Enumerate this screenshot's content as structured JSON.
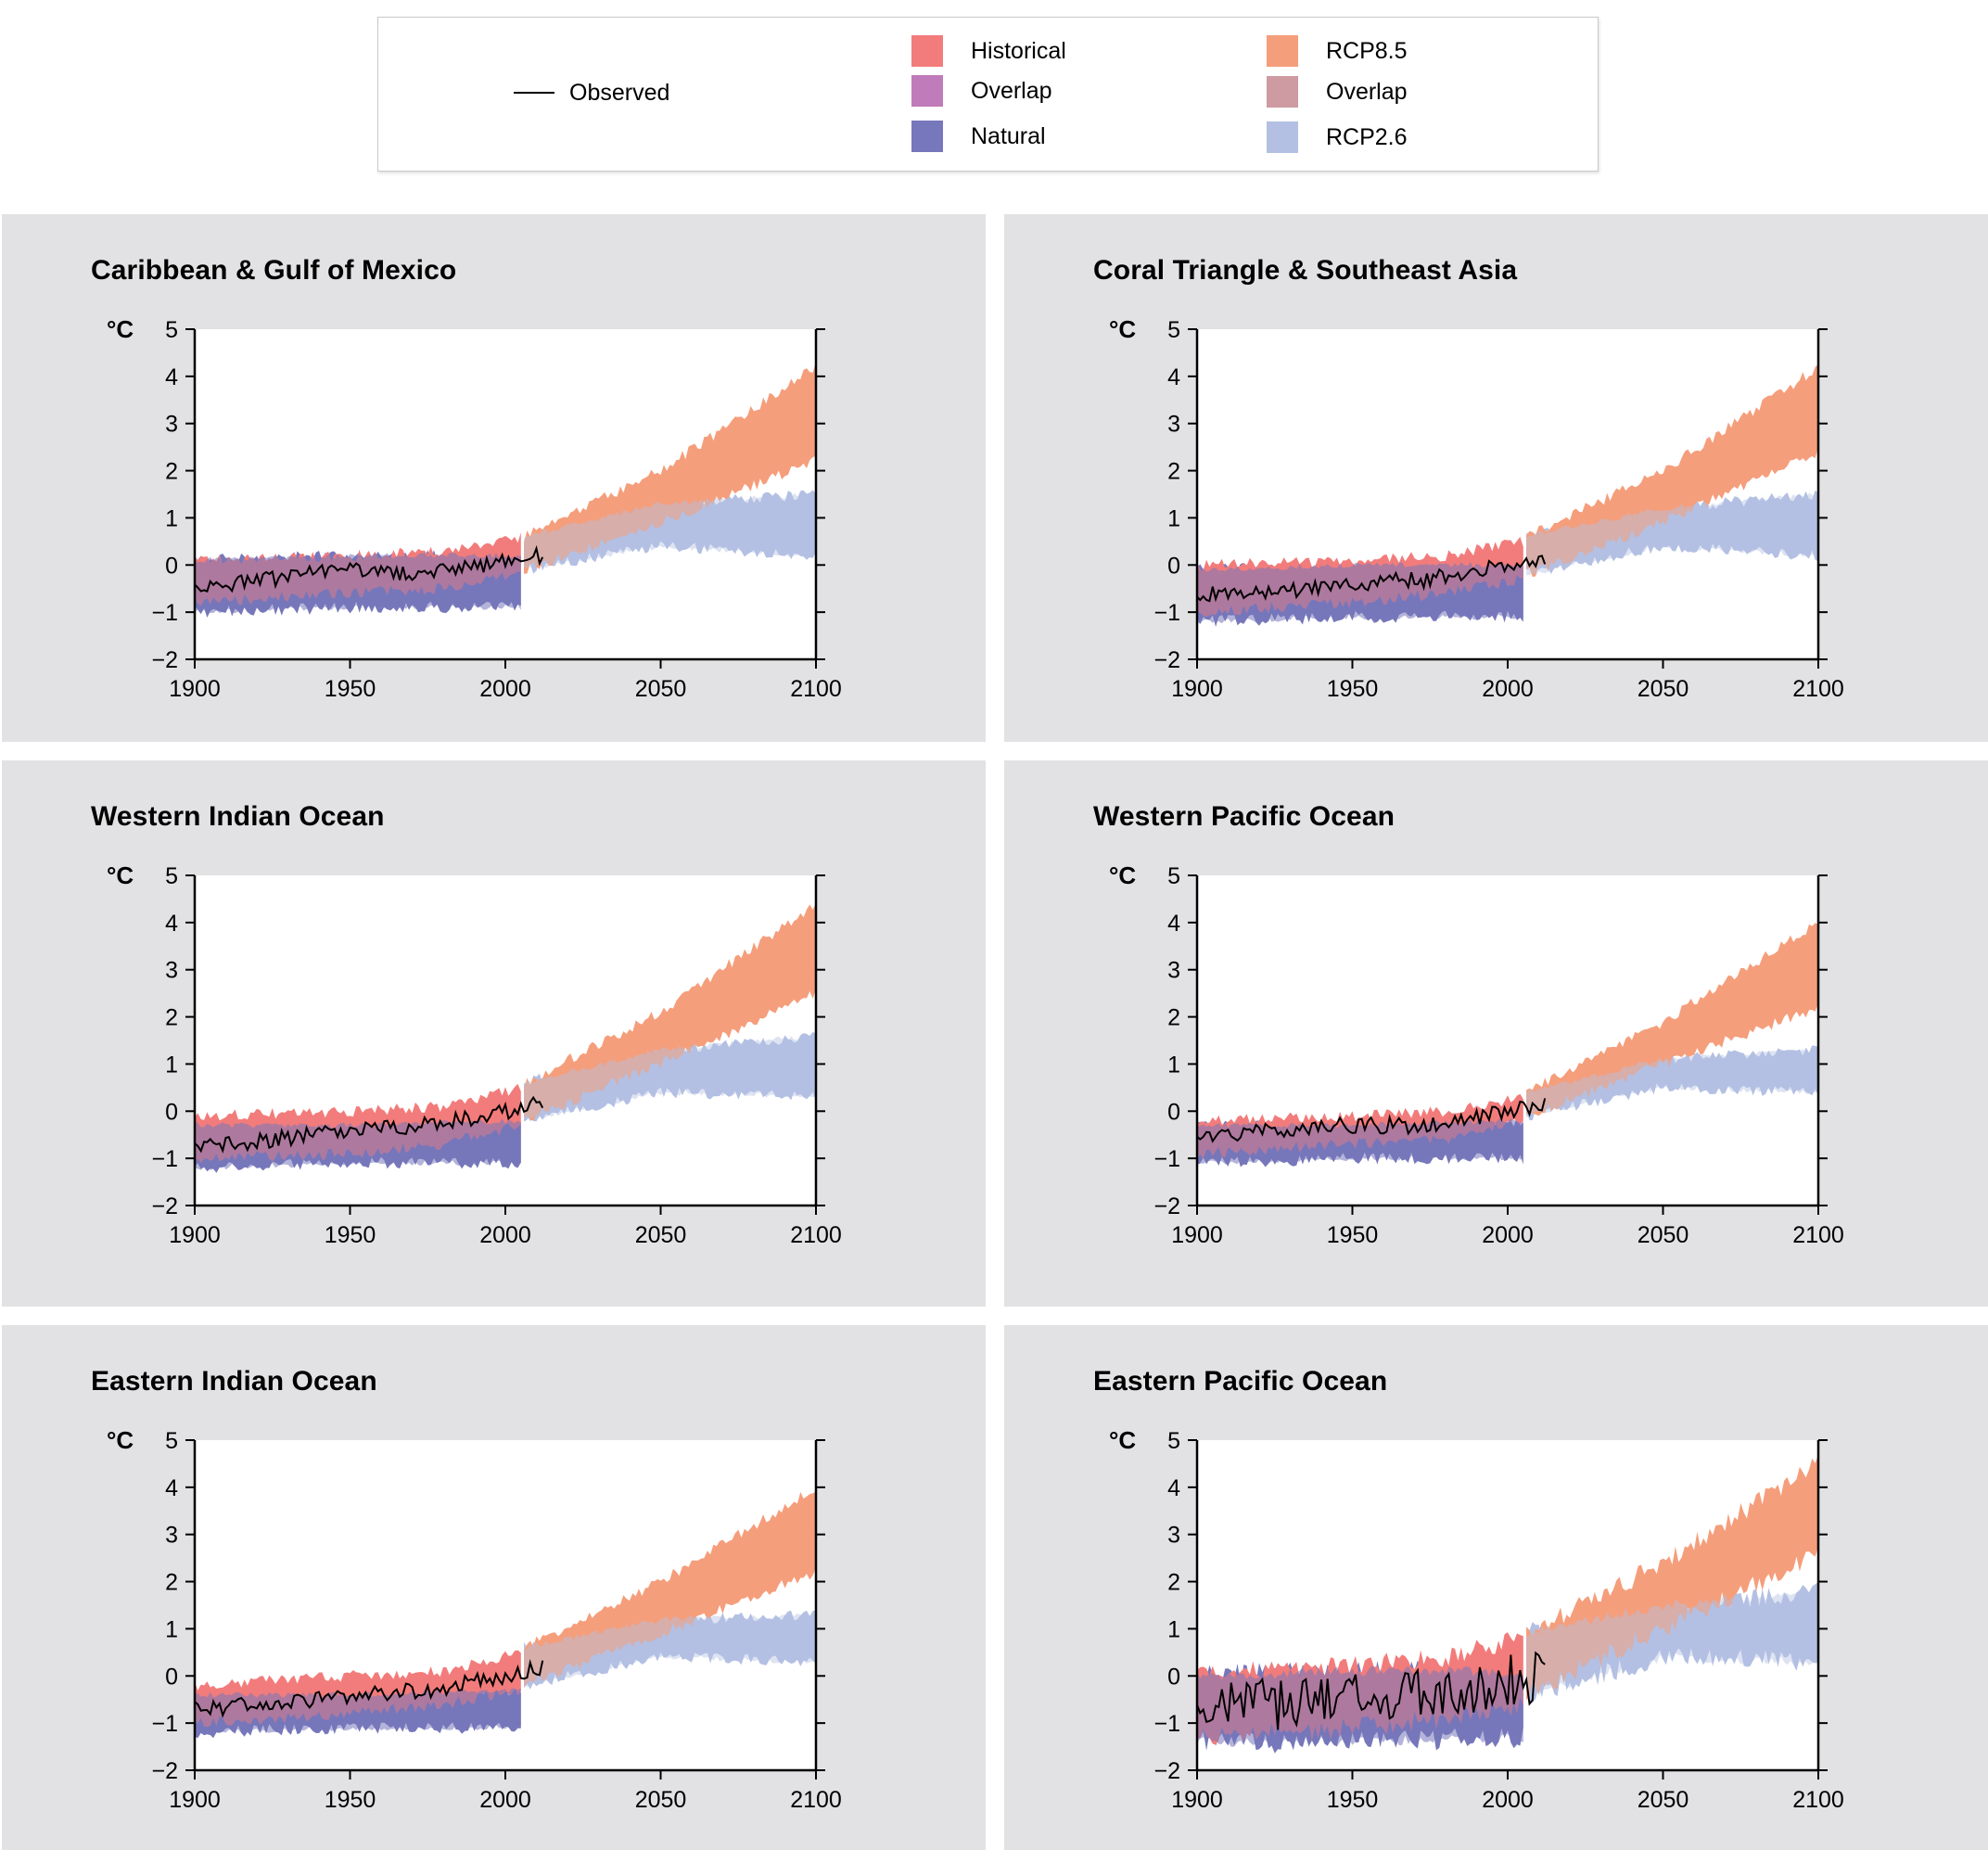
{
  "legend": {
    "observed": "Observed",
    "historical": "Historical",
    "overlap_hist": "Overlap",
    "natural": "Natural",
    "rcp85": "RCP8.5",
    "overlap_rcp": "Overlap",
    "rcp26": "RCP2.6"
  },
  "colors": {
    "historical": "#f27c7b",
    "overlap_hist": "#c07bba",
    "natural": "#7777bb",
    "rcp85": "#f59e7c",
    "overlap_rcp": "#cd9ba1",
    "rcp26": "#b3c0e3",
    "observed": "#000000",
    "panel_bg": "#e2e2e4"
  },
  "chart_data": [
    {
      "type": "area",
      "title": "Caribbean & Gulf of Mexico",
      "ylabel": "°C",
      "xlim": [
        1900,
        2100
      ],
      "ylim": [
        -2,
        5
      ],
      "xticks": [
        1900,
        1950,
        2000,
        2050,
        2100
      ],
      "yticks": [
        5,
        4,
        3,
        2,
        1,
        0,
        -1,
        -2
      ],
      "series": [
        {
          "name": "Historical",
          "x": [
            1900,
            1950,
            1980,
            2005
          ],
          "low": [
            -0.8,
            -0.6,
            -0.5,
            -0.2
          ],
          "high": [
            0.1,
            0.2,
            0.3,
            0.6
          ]
        },
        {
          "name": "Natural",
          "x": [
            1900,
            1950,
            2005
          ],
          "low": [
            -1.0,
            -0.9,
            -0.9
          ],
          "high": [
            0.1,
            0.2,
            0.2
          ]
        },
        {
          "name": "RCP8.5",
          "x": [
            2006,
            2050,
            2100
          ],
          "low": [
            -0.1,
            0.9,
            2.2
          ],
          "high": [
            0.6,
            2.0,
            4.2
          ]
        },
        {
          "name": "RCP2.6",
          "x": [
            2006,
            2050,
            2100
          ],
          "low": [
            -0.1,
            0.4,
            0.2
          ],
          "high": [
            0.6,
            1.3,
            1.5
          ]
        },
        {
          "name": "Observed",
          "x": [
            1900,
            1925,
            1950,
            1975,
            2000,
            2012
          ],
          "y": [
            -0.5,
            -0.3,
            -0.1,
            -0.2,
            0.1,
            0.2
          ]
        }
      ]
    },
    {
      "type": "area",
      "title": "Coral Triangle & Southeast Asia",
      "ylabel": "°C",
      "xlim": [
        1900,
        2100
      ],
      "ylim": [
        -2,
        5
      ],
      "xticks": [
        1900,
        1950,
        2000,
        2050,
        2100
      ],
      "yticks": [
        5,
        4,
        3,
        2,
        1,
        0,
        -1,
        -2
      ],
      "series": [
        {
          "name": "Historical",
          "x": [
            1900,
            1950,
            1980,
            2005
          ],
          "low": [
            -1.0,
            -0.8,
            -0.6,
            -0.3
          ],
          "high": [
            0.0,
            0.1,
            0.2,
            0.5
          ]
        },
        {
          "name": "Natural",
          "x": [
            1900,
            1950,
            2005
          ],
          "low": [
            -1.2,
            -1.1,
            -1.1
          ],
          "high": [
            -0.1,
            0.0,
            0.0
          ]
        },
        {
          "name": "RCP8.5",
          "x": [
            2006,
            2050,
            2100
          ],
          "low": [
            -0.2,
            0.9,
            2.4
          ],
          "high": [
            0.6,
            2.0,
            4.2
          ]
        },
        {
          "name": "RCP2.6",
          "x": [
            2006,
            2050,
            2100
          ],
          "low": [
            -0.2,
            0.4,
            0.2
          ],
          "high": [
            0.6,
            1.2,
            1.5
          ]
        },
        {
          "name": "Observed",
          "x": [
            1900,
            1925,
            1950,
            1975,
            2000,
            2012
          ],
          "y": [
            -0.6,
            -0.6,
            -0.4,
            -0.3,
            0.0,
            0.1
          ]
        }
      ]
    },
    {
      "type": "area",
      "title": "Western Indian Ocean",
      "ylabel": "°C",
      "xlim": [
        1900,
        2100
      ],
      "ylim": [
        -2,
        5
      ],
      "xticks": [
        1900,
        1950,
        2000,
        2050,
        2100
      ],
      "yticks": [
        5,
        4,
        3,
        2,
        1,
        0,
        -1,
        -2
      ],
      "series": [
        {
          "name": "Historical",
          "x": [
            1900,
            1950,
            1980,
            2005
          ],
          "low": [
            -1.0,
            -0.9,
            -0.7,
            -0.3
          ],
          "high": [
            -0.1,
            0.0,
            0.1,
            0.5
          ]
        },
        {
          "name": "Natural",
          "x": [
            1900,
            1950,
            2005
          ],
          "low": [
            -1.2,
            -1.1,
            -1.1
          ],
          "high": [
            -0.3,
            -0.3,
            -0.2
          ]
        },
        {
          "name": "RCP8.5",
          "x": [
            2006,
            2050,
            2100
          ],
          "low": [
            -0.2,
            1.0,
            2.5
          ],
          "high": [
            0.6,
            2.1,
            4.4
          ]
        },
        {
          "name": "RCP2.6",
          "x": [
            2006,
            2050,
            2100
          ],
          "low": [
            -0.2,
            0.4,
            0.3
          ],
          "high": [
            0.6,
            1.3,
            1.6
          ]
        },
        {
          "name": "Observed",
          "x": [
            1900,
            1925,
            1950,
            1975,
            2000,
            2012
          ],
          "y": [
            -0.8,
            -0.6,
            -0.4,
            -0.3,
            0.0,
            0.2
          ]
        }
      ]
    },
    {
      "type": "area",
      "title": "Western Pacific Ocean",
      "ylabel": "°C",
      "xlim": [
        1900,
        2100
      ],
      "ylim": [
        -2,
        5
      ],
      "xticks": [
        1900,
        1950,
        2000,
        2050,
        2100
      ],
      "yticks": [
        5,
        4,
        3,
        2,
        1,
        0,
        -1,
        -2
      ],
      "series": [
        {
          "name": "Historical",
          "x": [
            1900,
            1950,
            1980,
            2005
          ],
          "low": [
            -0.9,
            -0.7,
            -0.6,
            -0.2
          ],
          "high": [
            -0.2,
            -0.1,
            0.0,
            0.3
          ]
        },
        {
          "name": "Natural",
          "x": [
            1900,
            1950,
            2005
          ],
          "low": [
            -1.1,
            -1.0,
            -1.0
          ],
          "high": [
            -0.3,
            -0.3,
            -0.2
          ]
        },
        {
          "name": "RCP8.5",
          "x": [
            2006,
            2050,
            2100
          ],
          "low": [
            -0.1,
            1.0,
            2.2
          ],
          "high": [
            0.4,
            1.9,
            4.0
          ]
        },
        {
          "name": "RCP2.6",
          "x": [
            2006,
            2050,
            2100
          ],
          "low": [
            -0.1,
            0.5,
            0.4
          ],
          "high": [
            0.4,
            1.1,
            1.3
          ]
        },
        {
          "name": "Observed",
          "x": [
            1900,
            1925,
            1950,
            1975,
            2000,
            2012
          ],
          "y": [
            -0.5,
            -0.4,
            -0.3,
            -0.3,
            0.0,
            0.1
          ]
        }
      ]
    },
    {
      "type": "area",
      "title": "Eastern Indian Ocean",
      "ylabel": "°C",
      "xlim": [
        1900,
        2100
      ],
      "ylim": [
        -2,
        5
      ],
      "xticks": [
        1900,
        1950,
        2000,
        2050,
        2100
      ],
      "yticks": [
        5,
        4,
        3,
        2,
        1,
        0,
        -1,
        -2
      ],
      "series": [
        {
          "name": "Historical",
          "x": [
            1900,
            1950,
            1980,
            2005
          ],
          "low": [
            -1.0,
            -0.8,
            -0.6,
            -0.3
          ],
          "high": [
            -0.2,
            0.0,
            0.1,
            0.5
          ]
        },
        {
          "name": "Natural",
          "x": [
            1900,
            1950,
            2005
          ],
          "low": [
            -1.2,
            -1.1,
            -1.1
          ],
          "high": [
            -0.4,
            -0.4,
            -0.3
          ]
        },
        {
          "name": "RCP8.5",
          "x": [
            2006,
            2050,
            2100
          ],
          "low": [
            -0.2,
            0.9,
            2.2
          ],
          "high": [
            0.6,
            2.0,
            4.0
          ]
        },
        {
          "name": "RCP2.6",
          "x": [
            2006,
            2050,
            2100
          ],
          "low": [
            -0.2,
            0.4,
            0.3
          ],
          "high": [
            0.6,
            1.2,
            1.3
          ]
        },
        {
          "name": "Observed",
          "x": [
            1900,
            1925,
            1950,
            1975,
            2000,
            2012
          ],
          "y": [
            -0.7,
            -0.6,
            -0.4,
            -0.3,
            0.0,
            0.2
          ]
        }
      ]
    },
    {
      "type": "area",
      "title": "Eastern Pacific Ocean",
      "ylabel": "°C",
      "xlim": [
        1900,
        2100
      ],
      "ylim": [
        -2,
        5
      ],
      "xticks": [
        1900,
        1950,
        2000,
        2050,
        2100
      ],
      "yticks": [
        5,
        4,
        3,
        2,
        1,
        0,
        -1,
        -2
      ],
      "series": [
        {
          "name": "Historical",
          "x": [
            1900,
            1950,
            1980,
            2005
          ],
          "low": [
            -1.3,
            -1.1,
            -0.9,
            -0.6
          ],
          "high": [
            0.1,
            0.2,
            0.4,
            0.8
          ]
        },
        {
          "name": "Natural",
          "x": [
            1900,
            1950,
            2005
          ],
          "low": [
            -1.4,
            -1.4,
            -1.3
          ],
          "high": [
            0.0,
            0.1,
            0.1
          ]
        },
        {
          "name": "RCP8.5",
          "x": [
            2006,
            2050,
            2100
          ],
          "low": [
            -0.4,
            1.0,
            2.6
          ],
          "high": [
            0.9,
            2.4,
            4.5
          ]
        },
        {
          "name": "RCP2.6",
          "x": [
            2006,
            2050,
            2100
          ],
          "low": [
            -0.4,
            0.4,
            0.3
          ],
          "high": [
            0.9,
            1.5,
            1.8
          ]
        },
        {
          "name": "Observed",
          "x": [
            1900,
            1925,
            1950,
            1975,
            2000,
            2012
          ],
          "y": [
            -0.6,
            -0.6,
            -0.5,
            -0.4,
            -0.1,
            0.0
          ]
        }
      ]
    }
  ]
}
